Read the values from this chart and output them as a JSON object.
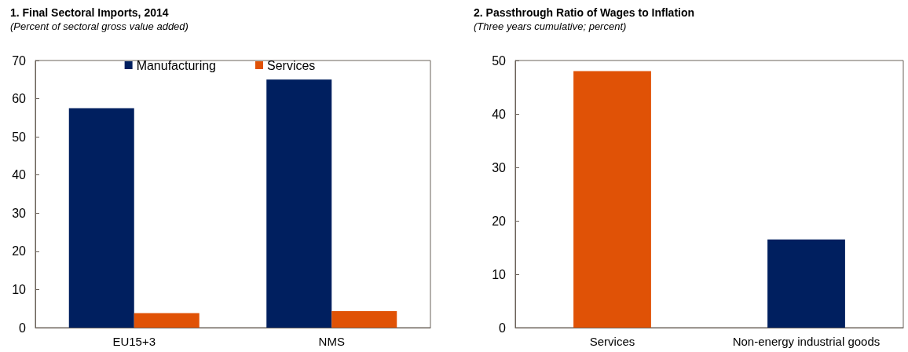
{
  "chart_data": [
    {
      "type": "bar",
      "title": "1. Final Sectoral Imports, 2014",
      "subtitle": "(Percent of sectoral gross value added)",
      "categories": [
        "EU15+3",
        "NMS"
      ],
      "series": [
        {
          "name": "Manufacturing",
          "color": "#001f5f",
          "values": [
            57.5,
            65
          ]
        },
        {
          "name": "Services",
          "color": "#e05206",
          "values": [
            3.8,
            4.3
          ]
        }
      ],
      "ylim": [
        0,
        70
      ],
      "yticks": [
        0,
        10,
        20,
        30,
        40,
        50,
        60,
        70
      ],
      "grid": false,
      "legend": "top"
    },
    {
      "type": "bar",
      "title": "2. Passthrough Ratio of Wages to Inflation",
      "subtitle": "(Three years cumulative; percent)",
      "categories": [
        "Services",
        "Non-energy industrial goods"
      ],
      "values": [
        48,
        16.5
      ],
      "colors": [
        "#e05206",
        "#001f5f"
      ],
      "ylim": [
        0,
        50
      ],
      "yticks": [
        0,
        10,
        20,
        30,
        40,
        50
      ],
      "grid": false
    }
  ]
}
